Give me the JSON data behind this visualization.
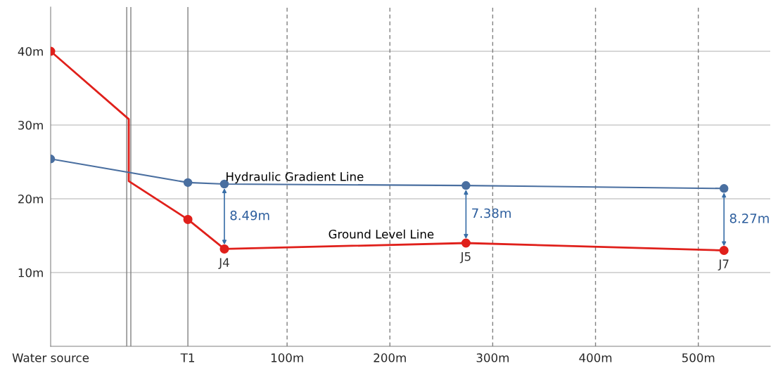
{
  "chart_data": {
    "type": "line",
    "x": [
      -130,
      -54,
      -54,
      3.5,
      39,
      274,
      525
    ],
    "series": [
      {
        "name": "Ground Level Line",
        "color": "#e0201b",
        "values": [
          40,
          30.8,
          22.4,
          17.2,
          13.2,
          14.0,
          13.0
        ],
        "marker": "none"
      },
      {
        "type": "scatter",
        "color": "#e0201b",
        "x": [
          -130,
          3.5,
          39,
          274,
          525
        ],
        "values": [
          40,
          17.2,
          13.2,
          14.0,
          13.0
        ]
      },
      {
        "name": "Hydraulic Gradient Line",
        "color": "#4a6fa0",
        "x": [
          -130,
          3.5,
          39,
          274,
          525
        ],
        "values": [
          25.4,
          22.2,
          22.0,
          21.8,
          21.4
        ]
      }
    ],
    "marker": "circle",
    "line_style": "solid",
    "xlim": [
      -130,
      570
    ],
    "ylim": [
      0,
      46
    ],
    "xticks": [
      {
        "value": -130,
        "label": "Water source"
      },
      {
        "value": 3.5,
        "label": "T1"
      },
      {
        "value": 100,
        "label": "100m"
      },
      {
        "value": 200,
        "label": "200m"
      },
      {
        "value": 300,
        "label": "300m"
      },
      {
        "value": 400,
        "label": "400m"
      },
      {
        "value": 500,
        "label": "500m"
      }
    ],
    "yticks": [
      {
        "value": 10,
        "label": "10m"
      },
      {
        "value": 20,
        "label": "20m"
      },
      {
        "value": 30,
        "label": "30m"
      },
      {
        "value": 40,
        "label": "40m"
      }
    ],
    "grid": "y",
    "ref_lines": [
      {
        "axis": "x",
        "value": -56,
        "line_style": "solid"
      },
      {
        "axis": "x",
        "value": -52,
        "line_style": "solid"
      },
      {
        "axis": "x",
        "value": 3.5,
        "line_style": "solid"
      },
      {
        "axis": "x",
        "value": 100,
        "line_style": "dashed"
      },
      {
        "axis": "x",
        "value": 200,
        "line_style": "dashed"
      },
      {
        "axis": "x",
        "value": 300,
        "line_style": "dashed"
      },
      {
        "axis": "x",
        "value": 400,
        "line_style": "dashed"
      },
      {
        "axis": "x",
        "value": 500,
        "line_style": "dashed"
      }
    ],
    "annotations": [
      {
        "text": "8.49m",
        "x": 39,
        "y": 22.0
      },
      {
        "text": "7.38m",
        "x": 274,
        "y": 21.8
      },
      {
        "text": "8.27m",
        "x": 525,
        "y": 21.4
      },
      {
        "text": "J4",
        "x": 39,
        "y": 13.2
      },
      {
        "text": "J5",
        "x": 274,
        "y": 14.0
      },
      {
        "text": "J7",
        "x": 525,
        "y": 13.0
      }
    ]
  }
}
